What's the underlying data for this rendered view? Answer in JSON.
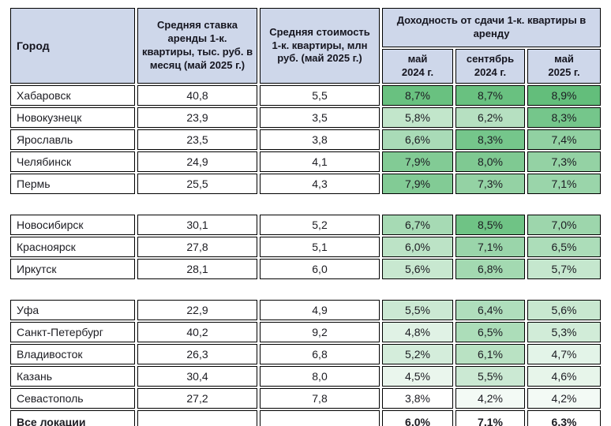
{
  "chart_data": {
    "type": "table",
    "header": {
      "col_city": "Город",
      "col_rent": "Средняя ставка аренды 1-к. квартиры, тыс. руб. в месяц (май 2025 г.)",
      "col_price": "Средняя стоимость 1-к. квартиры, млн руб. (май 2025 г.)",
      "col_yield_group": "Доходность от сдачи 1-к. квартиры в аренду",
      "yield_periods": [
        "май\n2024 г.",
        "сентябрь\n2024 г.",
        "май\n2025 г."
      ]
    },
    "groups": [
      {
        "rows": [
          {
            "city": "Хабаровск",
            "rent": "40,8",
            "price": "5,5",
            "yields": [
              8.7,
              8.7,
              8.9
            ]
          },
          {
            "city": "Новокузнецк",
            "rent": "23,9",
            "price": "3,5",
            "yields": [
              5.8,
              6.2,
              8.3
            ]
          },
          {
            "city": "Ярославль",
            "rent": "23,5",
            "price": "3,8",
            "yields": [
              6.6,
              8.3,
              7.4
            ]
          },
          {
            "city": "Челябинск",
            "rent": "24,9",
            "price": "4,1",
            "yields": [
              7.9,
              8.0,
              7.3
            ]
          },
          {
            "city": "Пермь",
            "rent": "25,5",
            "price": "4,3",
            "yields": [
              7.9,
              7.3,
              7.1
            ]
          }
        ]
      },
      {
        "rows": [
          {
            "city": "Новосибирск",
            "rent": "30,1",
            "price": "5,2",
            "yields": [
              6.7,
              8.5,
              7.0
            ]
          },
          {
            "city": "Красноярск",
            "rent": "27,8",
            "price": "5,1",
            "yields": [
              6.0,
              7.1,
              6.5
            ]
          },
          {
            "city": "Иркутск",
            "rent": "28,1",
            "price": "6,0",
            "yields": [
              5.6,
              6.8,
              5.7
            ]
          }
        ]
      },
      {
        "rows": [
          {
            "city": "Уфа",
            "rent": "22,9",
            "price": "4,9",
            "yields": [
              5.5,
              6.4,
              5.6
            ]
          },
          {
            "city": "Санкт-Петербург",
            "rent": "40,2",
            "price": "9,2",
            "yields": [
              4.8,
              6.5,
              5.3
            ]
          },
          {
            "city": "Владивосток",
            "rent": "26,3",
            "price": "6,8",
            "yields": [
              5.2,
              6.1,
              4.7
            ]
          },
          {
            "city": "Казань",
            "rent": "30,4",
            "price": "8,0",
            "yields": [
              4.5,
              5.5,
              4.6
            ]
          },
          {
            "city": "Севастополь",
            "rent": "27,2",
            "price": "7,8",
            "yields": [
              3.8,
              4.2,
              4.2
            ]
          }
        ]
      }
    ],
    "total_row": {
      "city": "Все локации",
      "rent": "",
      "price": "",
      "yields": [
        6.0,
        7.1,
        6.3
      ]
    },
    "color_scale": {
      "min_value": 3.8,
      "max_value": 8.9,
      "min_color": "#FFFFFF",
      "max_color": "#63BE7B"
    },
    "colors": {
      "header_bg": "#CED7EA",
      "border": "#000000",
      "text": "#1C1C22"
    },
    "layout_hints": {
      "grid": true,
      "value_format": "percent-comma-decimal",
      "group_gaps_after_rows": [
        5,
        8
      ]
    }
  }
}
